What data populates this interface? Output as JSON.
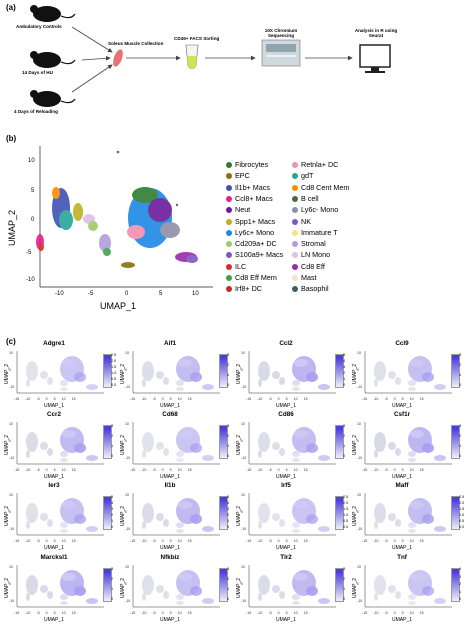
{
  "panel_a": {
    "label": "(a)",
    "groups": [
      "Ambulatory Controls",
      "14 Days of HU",
      "4 Days of Reloading"
    ],
    "steps": [
      "Soleus Muscle Collection",
      "CD45+ FACS Sorting",
      "10X Chromium Sequencing",
      "Analysis in R using Seurat"
    ]
  },
  "panel_b": {
    "label": "(b)",
    "xlabel": "UMAP_1",
    "ylabel": "UMAP_2",
    "xticks": [
      "-10",
      "-5",
      "0",
      "5",
      "10"
    ],
    "yticks": [
      "10",
      "5",
      "0",
      "-5",
      "-10"
    ],
    "legend_col1": [
      {
        "name": "Fibrocytes",
        "color": "#2e7d32"
      },
      {
        "name": "EPC",
        "color": "#8d6e0b"
      },
      {
        "name": "Il1b+ Macs",
        "color": "#3f51b5"
      },
      {
        "name": "Ccl8+ Macs",
        "color": "#e91e8c"
      },
      {
        "name": "Neut",
        "color": "#6a1b9a"
      },
      {
        "name": "Spp1+ Macs",
        "color": "#c0b020"
      },
      {
        "name": "Ly6c+ Mono",
        "color": "#1e88e5"
      },
      {
        "name": "Cd209a+ DC",
        "color": "#9ccc65"
      },
      {
        "name": "S100a9+ Macs",
        "color": "#7e57c2"
      },
      {
        "name": "ILC",
        "color": "#d32f2f"
      },
      {
        "name": "Cd8 Eff Mem",
        "color": "#43a047"
      },
      {
        "name": "Irf8+ DC",
        "color": "#c62828"
      }
    ],
    "legend_col2": [
      {
        "name": "Retnla+ DC",
        "color": "#f48fb1"
      },
      {
        "name": "gdT",
        "color": "#26a69a"
      },
      {
        "name": "Cd8 Cent Mem",
        "color": "#fb8c00"
      },
      {
        "name": "B cell",
        "color": "#4e6a3a"
      },
      {
        "name": "Ly6c- Mono",
        "color": "#8e8ea8"
      },
      {
        "name": "NK",
        "color": "#7e57c2"
      },
      {
        "name": "Immature T",
        "color": "#ffe082"
      },
      {
        "name": "Stromal",
        "color": "#b39ddb"
      },
      {
        "name": "LN Mono",
        "color": "#e1bee7"
      },
      {
        "name": "Cd8 Eff",
        "color": "#9c27b0"
      },
      {
        "name": "Mast",
        "color": "#f6e3c9"
      },
      {
        "name": "Basophil",
        "color": "#455a64"
      }
    ]
  },
  "panel_c": {
    "label": "(c)",
    "axis_x": "UMAP_1",
    "axis_y": "UMAP_2",
    "xticks": [
      "-15",
      "-10",
      "-5",
      "0",
      "5",
      "10",
      "15"
    ],
    "yticks": [
      "10",
      "0",
      "-10"
    ],
    "genes": [
      {
        "name": "Adgre1",
        "scale": [
          "2.5",
          "2.0",
          "1.5",
          "1.0",
          "0.5",
          "0.0"
        ]
      },
      {
        "name": "Aif1",
        "scale": [
          "3",
          "2",
          "1",
          "0"
        ]
      },
      {
        "name": "Ccl2",
        "scale": [
          "5",
          "4",
          "3",
          "2",
          "1",
          "0"
        ]
      },
      {
        "name": "Ccl9",
        "scale": [
          "3",
          "2",
          "1",
          "0"
        ]
      },
      {
        "name": "Ccr2",
        "scale": [
          "3",
          "2",
          "1",
          "0"
        ]
      },
      {
        "name": "Cd68",
        "scale": [
          "3",
          "2",
          "1",
          "0"
        ]
      },
      {
        "name": "Cd86",
        "scale": [
          "3",
          "2",
          "1",
          "0"
        ]
      },
      {
        "name": "Csf1r",
        "scale": [
          "3",
          "2",
          "1",
          "0"
        ]
      },
      {
        "name": "Ier3",
        "scale": [
          "5",
          "4",
          "3",
          "2",
          "1",
          "0"
        ]
      },
      {
        "name": "Il1b",
        "scale": [
          "5",
          "4",
          "3",
          "2",
          "1",
          "0"
        ]
      },
      {
        "name": "Irf5",
        "scale": [
          "2.5",
          "2.0",
          "1.5",
          "1.0",
          "0.5",
          "0.0"
        ]
      },
      {
        "name": "Maff",
        "scale": [
          "2.5",
          "2.0",
          "1.5",
          "1.0",
          "0.5",
          "0.0"
        ]
      },
      {
        "name": "Marcksl1",
        "scale": [
          "3",
          "2",
          "1",
          "0"
        ]
      },
      {
        "name": "Nfkbiz",
        "scale": [
          "3",
          "2",
          "1",
          "0"
        ]
      },
      {
        "name": "Tlr2",
        "scale": [
          "3",
          "2",
          "1",
          "0"
        ]
      },
      {
        "name": "Tnf",
        "scale": [
          "4",
          "3",
          "2",
          "1",
          "0"
        ]
      }
    ]
  }
}
